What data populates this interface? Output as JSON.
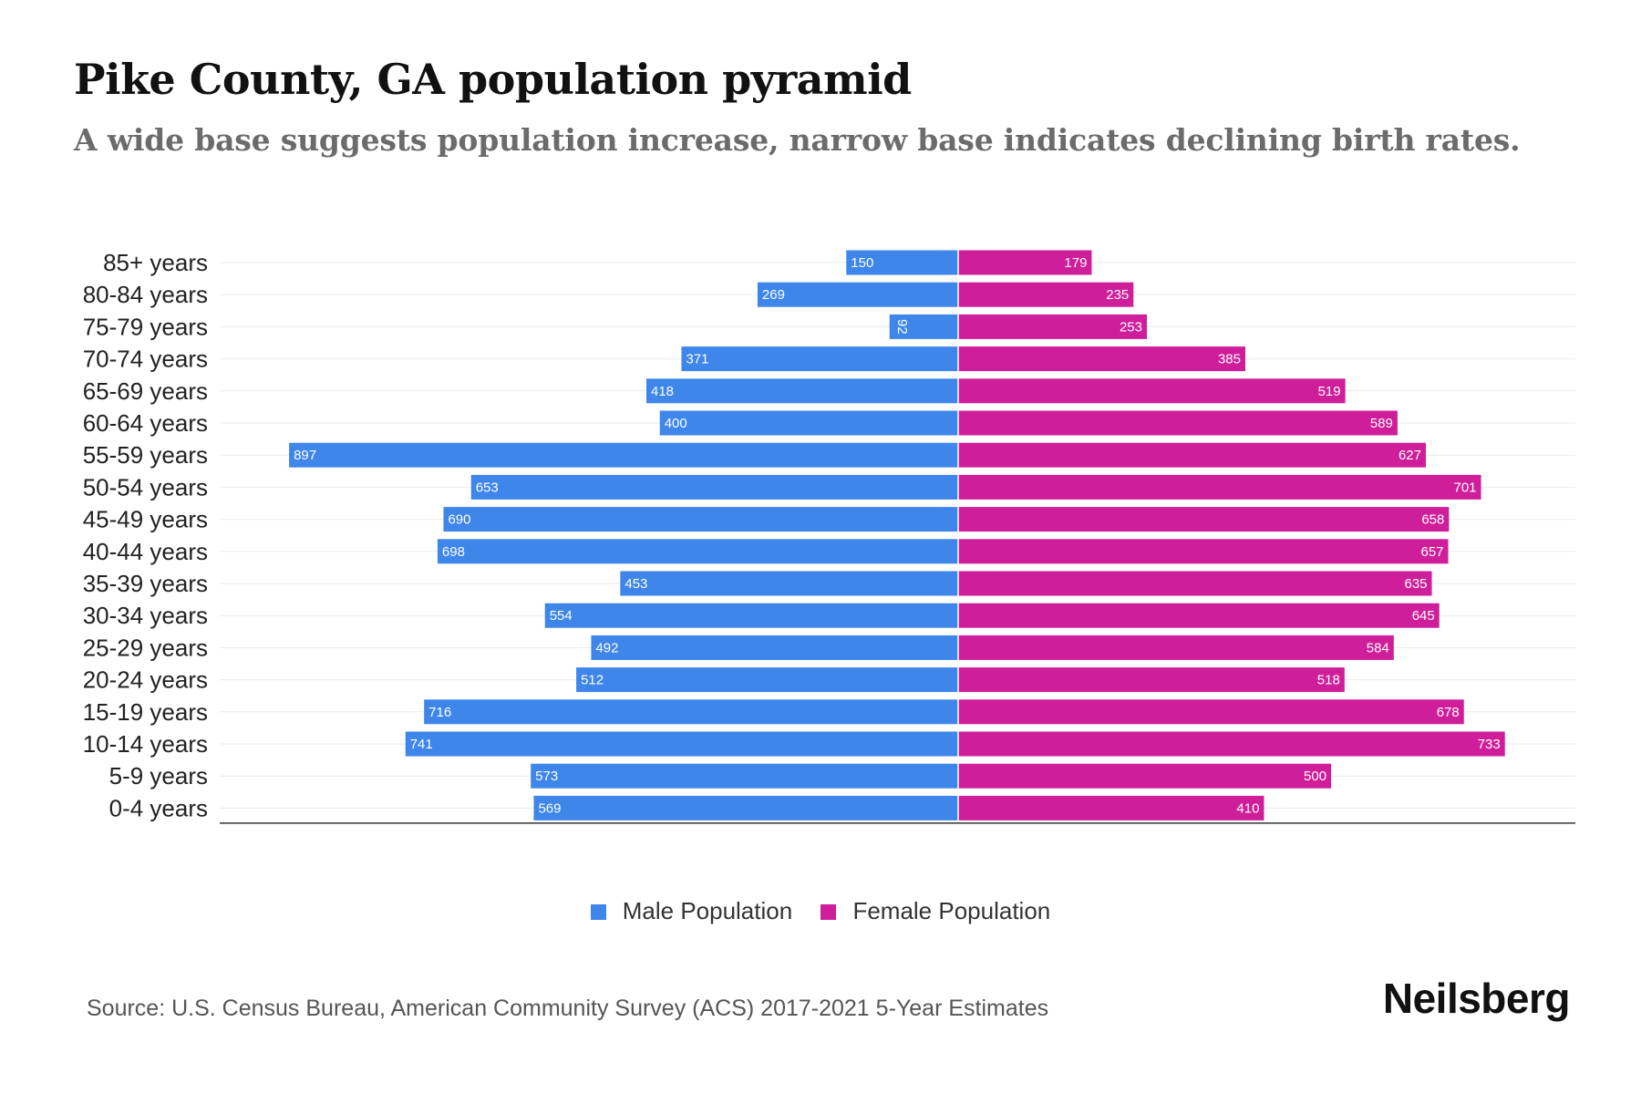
{
  "title": "Pike County, GA population pyramid",
  "subtitle": "A wide base suggests population increase, narrow base indicates declining birth rates.",
  "source": "Source: U.S. Census Bureau, American Community Survey (ACS) 2017-2021 5-Year Estimates",
  "brand": "Neilsberg",
  "colors": {
    "male": "#3f86ea",
    "female": "#cf1e9a"
  },
  "chart_data": {
    "type": "bar",
    "orientation": "horizontal-diverging",
    "categories": [
      "85+ years",
      "80-84 years",
      "75-79 years",
      "70-74 years",
      "65-69 years",
      "60-64 years",
      "55-59 years",
      "50-54 years",
      "45-49 years",
      "40-44 years",
      "35-39 years",
      "30-34 years",
      "25-29 years",
      "20-24 years",
      "15-19 years",
      "10-14 years",
      "5-9 years",
      "0-4 years"
    ],
    "series": [
      {
        "name": "Male Population",
        "values": [
          150,
          269,
          92,
          371,
          418,
          400,
          897,
          653,
          690,
          698,
          453,
          554,
          492,
          512,
          716,
          741,
          573,
          569
        ]
      },
      {
        "name": "Female Population",
        "values": [
          179,
          235,
          253,
          385,
          519,
          589,
          627,
          701,
          658,
          657,
          635,
          645,
          584,
          518,
          678,
          733,
          500,
          410
        ]
      }
    ],
    "xlim": [
      -990,
      825
    ],
    "grid": true,
    "legend_position": "bottom"
  }
}
